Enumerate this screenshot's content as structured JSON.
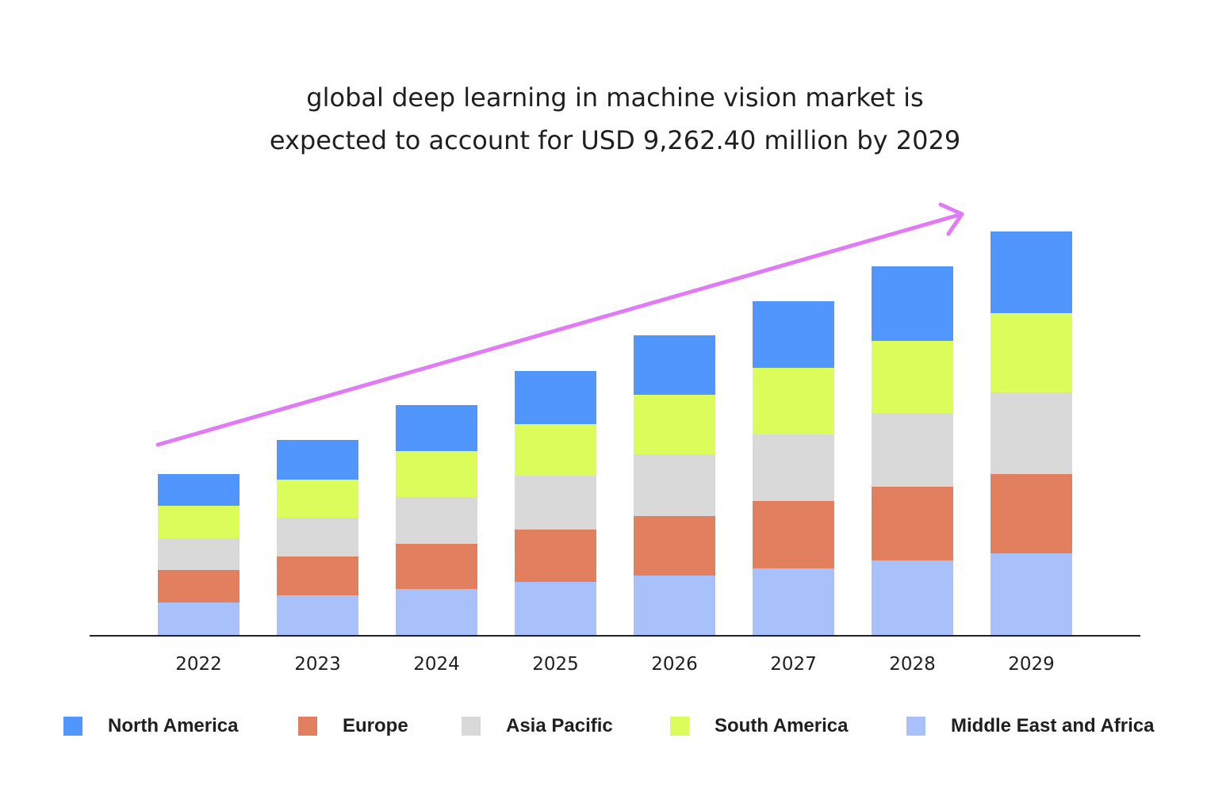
{
  "title_lines": [
    "global deep learning in machine vision market is",
    "expected to account for USD 9,262.40 million by 2029"
  ],
  "chart_data": {
    "type": "bar",
    "stacked": true,
    "categories": [
      "2022",
      "2023",
      "2024",
      "2025",
      "2026",
      "2027",
      "2028",
      "2029"
    ],
    "series": [
      {
        "name": "Middle East and Africa",
        "color": "#a9c1fb",
        "values": [
          41,
          50,
          58,
          67,
          75,
          84,
          94,
          103
        ]
      },
      {
        "name": "Europe",
        "color": "#e27f5e",
        "values": [
          41,
          49,
          57,
          66,
          75,
          85,
          93,
          100
        ]
      },
      {
        "name": "Asia Pacific",
        "color": "#d9d9d9",
        "values": [
          40,
          49,
          59,
          68,
          78,
          84,
          93,
          103
        ]
      },
      {
        "name": "South America",
        "color": "#dcfc5c",
        "values": [
          41,
          48,
          58,
          65,
          75,
          84,
          91,
          100
        ]
      },
      {
        "name": "North America",
        "color": "#5096fc",
        "values": [
          40,
          50,
          58,
          67,
          75,
          84,
          94,
          103
        ]
      }
    ],
    "ylim": [
      0,
      520
    ],
    "y_axis_shown": false,
    "grid": false,
    "trend_arrow_color": "#e07af5",
    "legend_position": "bottom"
  },
  "legend_order": [
    "North America",
    "Europe",
    "Asia Pacific",
    "South America",
    "Middle East and Africa"
  ]
}
